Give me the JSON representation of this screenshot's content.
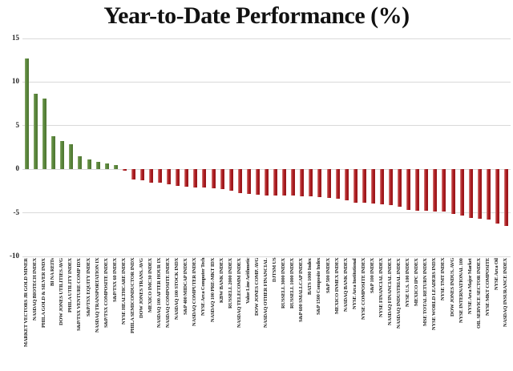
{
  "title": "Year-to-Date Performance (%)",
  "colors": {
    "positive_bar": "#5d8a3e",
    "negative_bar": "#b01f24",
    "gridline": "#d9d9d9",
    "title_text": "#111111"
  },
  "chart_data": {
    "type": "bar",
    "title": "Year-to-Date Performance (%)",
    "xlabel": "",
    "ylabel": "",
    "ylim": [
      -10,
      15
    ],
    "yticks": [
      15,
      10,
      5,
      0,
      -5,
      -10
    ],
    "grid": true,
    "legend": false,
    "bar_orientation": "vertical",
    "x_tick_rotation": 90,
    "categories": [
      "MARKET VECTORS JR GOLD MINER",
      "NASDAQ BIOTECH INDEX",
      "PHILA GOLD & SILVER INDX",
      "BI NA REITs",
      "DOW JONES UTILITIES AVG",
      "PHILA UTILITY INDEX",
      "S&P/TSX VENTURE COMP IDX",
      "S&P/TSX EQUITY INDEX",
      "NASDAQ TRANSPORTATION IX",
      "S&P/TSX COMPOSITE INDEX",
      "S&P/TSX 60 INDEX",
      "NYSE HEALTHCARE INDEX",
      "PHILA SEMICONDUCTOR INDX",
      "DOW JONES TRANS. AVG",
      "MEXICO IMC30 INDEX",
      "NASDAQ 100 AFTER HOUR IX",
      "NASDAQ COMPOSITE INDEX",
      "NASDAQ 100 STOCK INDX",
      "S&P 400 MIDCAP INDEX",
      "NASDAQ COMPUTER INDEX",
      "NYSE Arca Computer Tech",
      "NASDAQ 100 PRE-MKT IDX",
      "KBW BANK INDEX",
      "RUSSELL 2000 INDEX",
      "NASDAQ TELECOMM INDEX",
      "Value Line Arithmetic",
      "DOW JONES COMP. AVG",
      "NASDAQ OTHER FINANCIAL",
      "DJTSM US",
      "RUSSELL 3000 INDEX",
      "RUSSELL 1000 INDEX",
      "S&P 600 SMALLCAP INDEX",
      "BATS 1000 Index",
      "S&P 1500 Composite Index",
      "S&P 500 INDEX",
      "MEXICO INMEX INDEX",
      "NASDAQ BANK INDEX",
      "NYSE Arca Institutional",
      "NYSE COMPOSITE INDEX",
      "S&P 100 INDEX",
      "NYSE FINANCIAL INDEX",
      "NASDAQ FINANCIAL INDEX",
      "NASDAQ INDUSTRIAL INDEX",
      "NYSE U.S. 100 INDEX",
      "MEXICO IPC INDEX",
      "MSE TOTAL RETURN INDEX",
      "NYSE WORLD LEADERS INDX",
      "NYSE TMT INDEX",
      "DOW JONES INDUS. AVG",
      "NYSE INTERNATIONAL 100",
      "NYSE Arca Major Market",
      "OIL SERVICE SECTOR INDEX",
      "NYSE MKT COMPOSITE",
      "NYSE Arca Oil",
      "NASDAQ INSURANCE INDEX"
    ],
    "values": [
      12.7,
      8.7,
      8.1,
      3.8,
      3.2,
      2.9,
      1.45,
      1.1,
      0.85,
      0.7,
      0.5,
      -0.2,
      -1.15,
      -1.25,
      -1.5,
      -1.55,
      -1.7,
      -1.95,
      -2.0,
      -2.1,
      -2.1,
      -2.2,
      -2.3,
      -2.5,
      -2.75,
      -2.8,
      -2.9,
      -3.0,
      -3.0,
      -3.05,
      -3.05,
      -3.1,
      -3.15,
      -3.2,
      -3.3,
      -3.35,
      -3.6,
      -3.8,
      -3.85,
      -3.9,
      -4.0,
      -4.1,
      -4.3,
      -4.7,
      -4.75,
      -4.8,
      -4.85,
      -4.9,
      -5.15,
      -5.3,
      -5.55,
      -5.7,
      -5.8,
      -6.25,
      -6.55
    ]
  }
}
